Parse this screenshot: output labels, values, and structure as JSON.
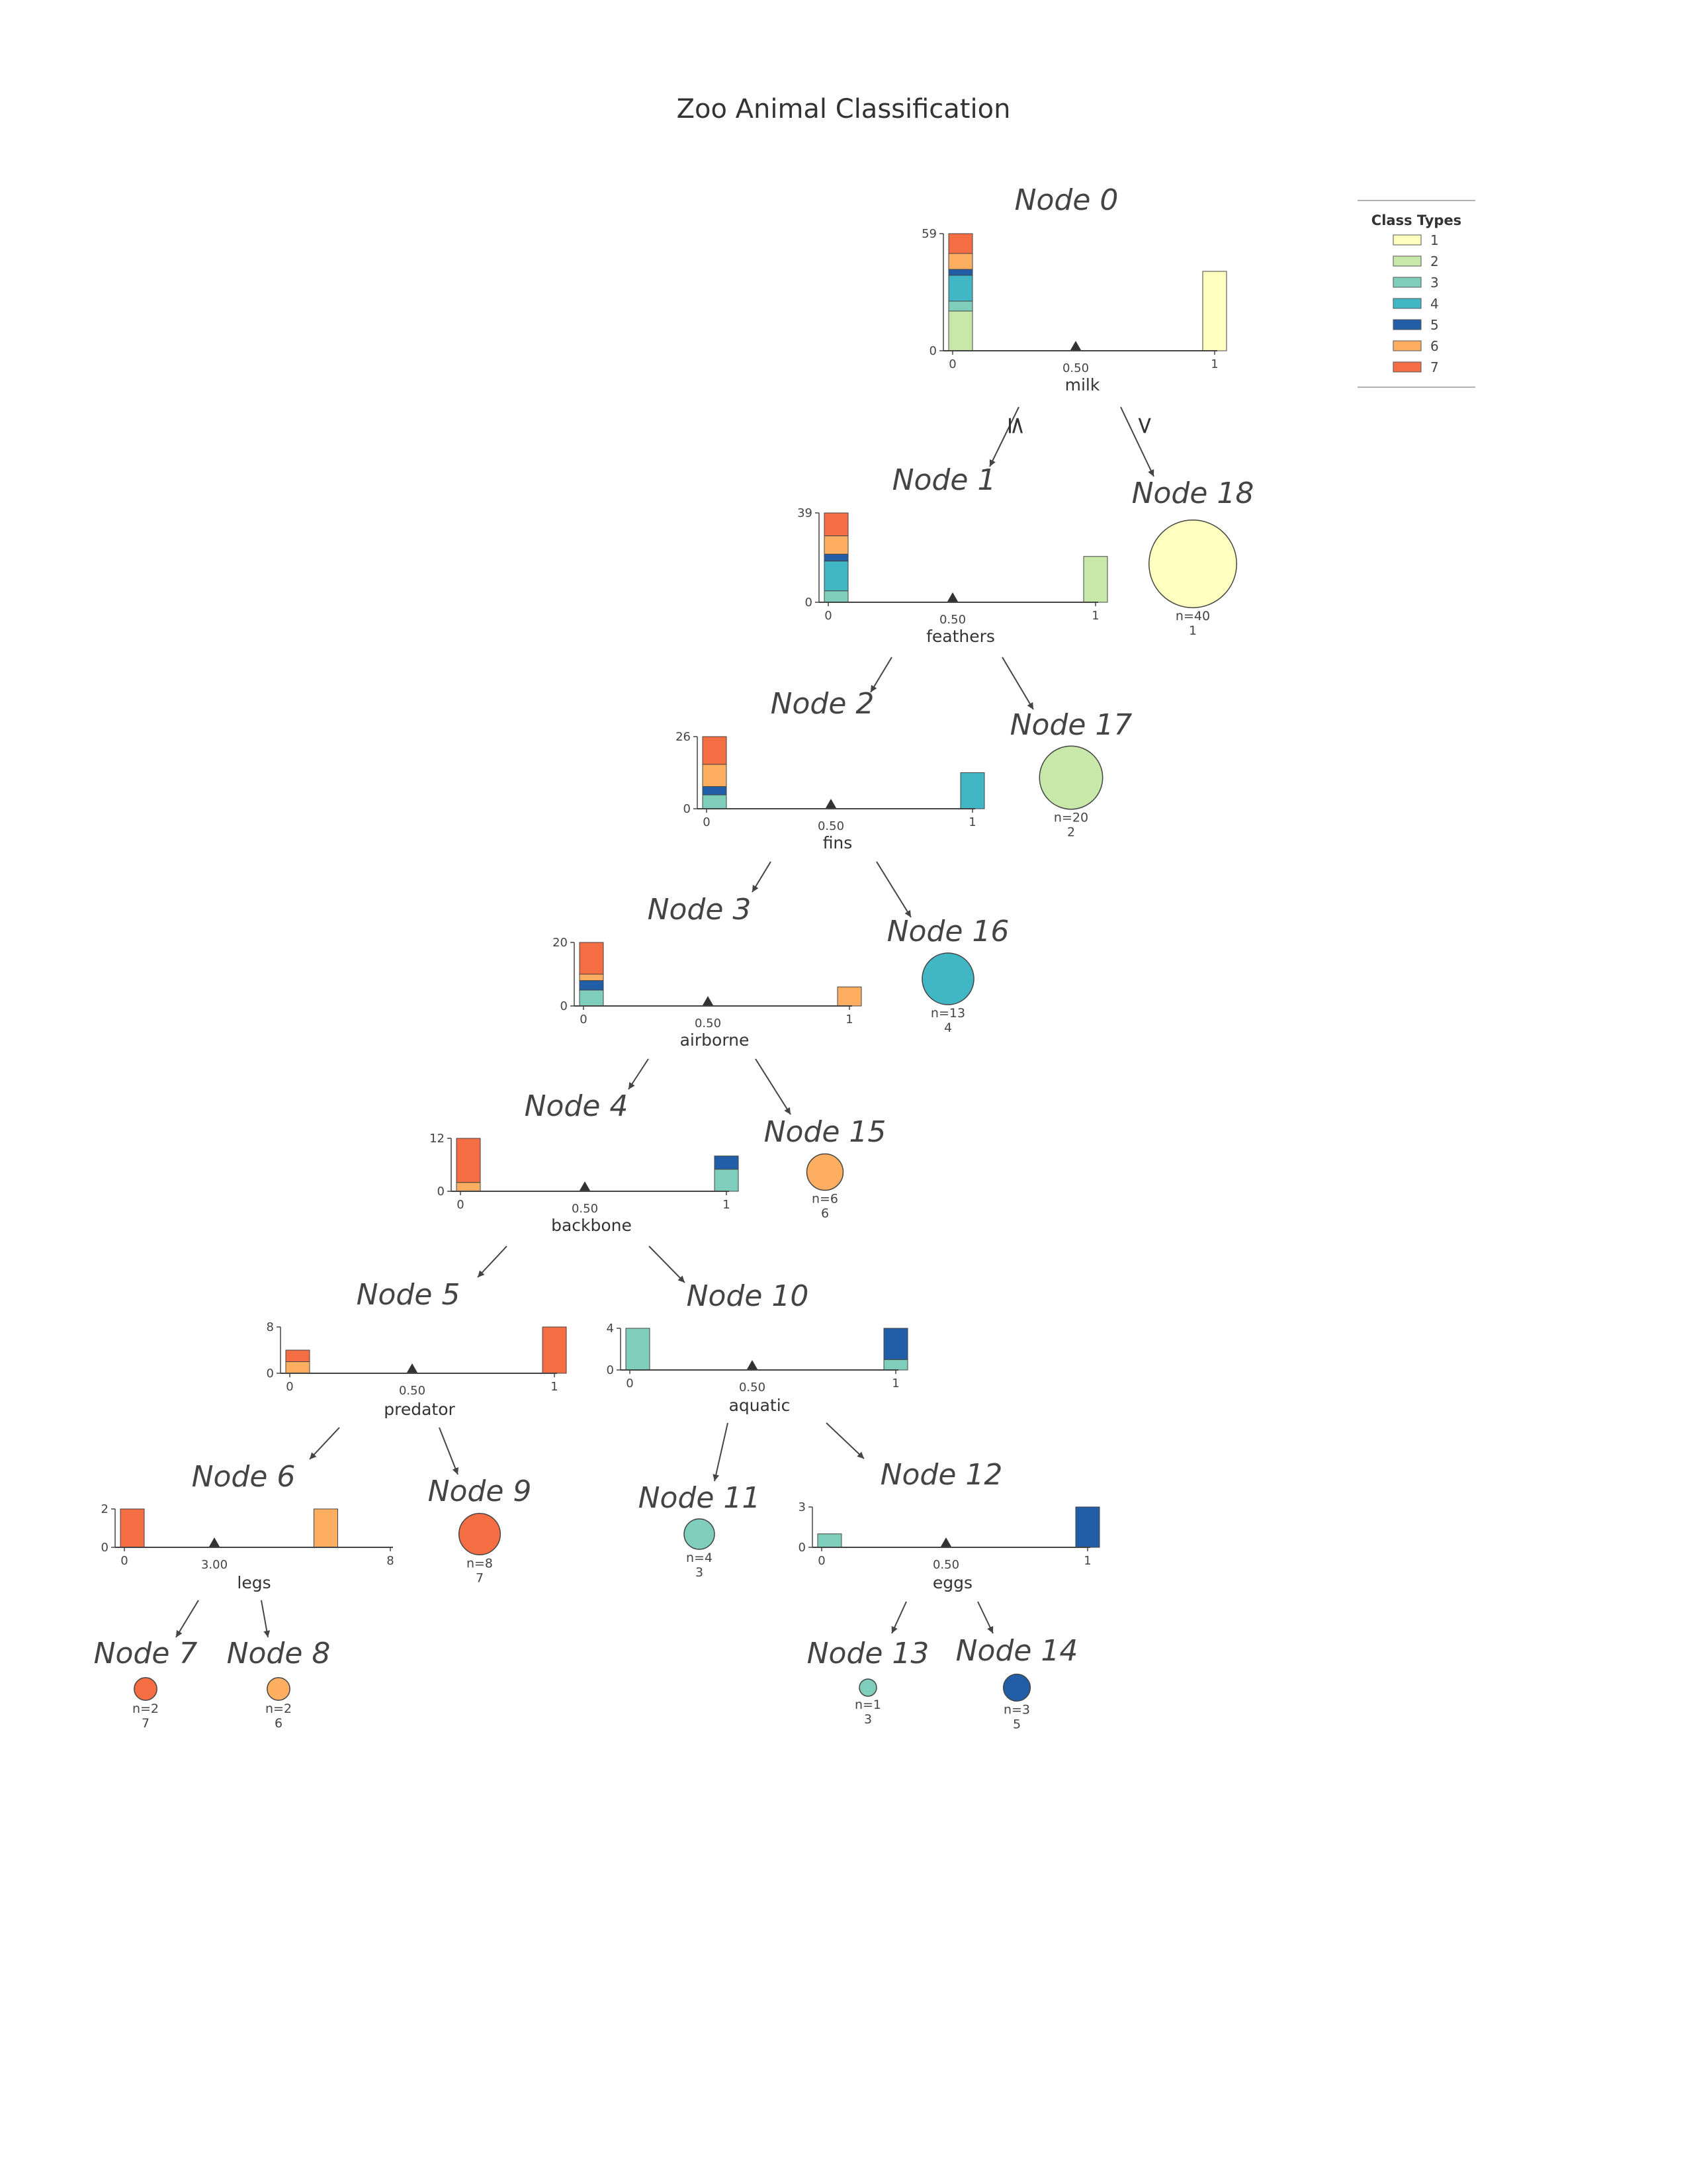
{
  "title": "Zoo Animal Classification",
  "legend": {
    "title": "Class Types",
    "classes": [
      {
        "label": "1",
        "color": "#ffffbf"
      },
      {
        "label": "2",
        "color": "#c7e8a8"
      },
      {
        "label": "3",
        "color": "#7fcdbb"
      },
      {
        "label": "4",
        "color": "#41b6c4"
      },
      {
        "label": "5",
        "color": "#225ea8"
      },
      {
        "label": "6",
        "color": "#fdae61"
      },
      {
        "label": "7",
        "color": "#f46d43"
      }
    ]
  },
  "edge_labels": {
    "left": "≤",
    "right": ">"
  },
  "split_nodes": [
    {
      "id": "node0",
      "label": "Node 0",
      "feature": "milk",
      "threshold": "0.50",
      "x_ticks": [
        "0",
        "1"
      ],
      "y_ticks": [
        "0",
        "59"
      ],
      "y_max": 59,
      "x_range": [
        0,
        1
      ],
      "split_value": 0.5,
      "bars": [
        {
          "x": 0,
          "counts": {
            "1": 0,
            "2": 20,
            "3": 5,
            "4": 13,
            "5": 3,
            "6": 8,
            "7": 10
          }
        },
        {
          "x": 1,
          "counts": {
            "1": 40
          }
        }
      ]
    },
    {
      "id": "node1",
      "label": "Node 1",
      "feature": "feathers",
      "threshold": "0.50",
      "x_ticks": [
        "0",
        "1"
      ],
      "y_ticks": [
        "0",
        "39"
      ],
      "y_max": 39,
      "x_range": [
        0,
        1
      ],
      "split_value": 0.5,
      "bars": [
        {
          "x": 0,
          "counts": {
            "3": 5,
            "4": 13,
            "5": 3,
            "6": 8,
            "7": 10
          }
        },
        {
          "x": 1,
          "counts": {
            "2": 20
          }
        }
      ]
    },
    {
      "id": "node2",
      "label": "Node 2",
      "feature": "fins",
      "threshold": "0.50",
      "x_ticks": [
        "0",
        "1"
      ],
      "y_ticks": [
        "0",
        "26"
      ],
      "y_max": 26,
      "x_range": [
        0,
        1
      ],
      "split_value": 0.5,
      "bars": [
        {
          "x": 0,
          "counts": {
            "3": 5,
            "5": 3,
            "6": 8,
            "7": 10
          }
        },
        {
          "x": 1,
          "counts": {
            "4": 13
          }
        }
      ]
    },
    {
      "id": "node3",
      "label": "Node 3",
      "feature": "airborne",
      "threshold": "0.50",
      "x_ticks": [
        "0",
        "1"
      ],
      "y_ticks": [
        "0",
        "20"
      ],
      "y_max": 20,
      "x_range": [
        0,
        1
      ],
      "split_value": 0.5,
      "bars": [
        {
          "x": 0,
          "counts": {
            "3": 5,
            "5": 3,
            "6": 2,
            "7": 10
          }
        },
        {
          "x": 1,
          "counts": {
            "6": 6
          }
        }
      ]
    },
    {
      "id": "node4",
      "label": "Node 4",
      "feature": "backbone",
      "threshold": "0.50",
      "x_ticks": [
        "0",
        "1"
      ],
      "y_ticks": [
        "0",
        "12"
      ],
      "y_max": 12,
      "x_range": [
        0,
        1
      ],
      "split_value": 0.5,
      "bars": [
        {
          "x": 0,
          "counts": {
            "6": 2,
            "7": 10
          }
        },
        {
          "x": 1,
          "counts": {
            "3": 5,
            "5": 3
          }
        }
      ]
    },
    {
      "id": "node5",
      "label": "Node 5",
      "feature": "predator",
      "threshold": "0.50",
      "x_ticks": [
        "0",
        "1"
      ],
      "y_ticks": [
        "0",
        "8"
      ],
      "y_max": 8,
      "x_range": [
        0,
        1
      ],
      "split_value": 0.5,
      "bars": [
        {
          "x": 0,
          "counts": {
            "6": 2,
            "7": 2
          }
        },
        {
          "x": 1,
          "counts": {
            "7": 8
          }
        }
      ]
    },
    {
      "id": "node10",
      "label": "Node 10",
      "feature": "aquatic",
      "threshold": "0.50",
      "x_ticks": [
        "0",
        "1"
      ],
      "y_ticks": [
        "0",
        "4"
      ],
      "y_max": 4,
      "x_range": [
        0,
        1
      ],
      "split_value": 0.5,
      "bars": [
        {
          "x": 0,
          "counts": {
            "3": 4
          }
        },
        {
          "x": 1,
          "counts": {
            "3": 1,
            "5": 3
          }
        }
      ]
    },
    {
      "id": "node6",
      "label": "Node 6",
      "feature": "legs",
      "threshold": "3.00",
      "x_ticks": [
        "0",
        "8"
      ],
      "y_ticks": [
        "0",
        "2"
      ],
      "y_max": 2,
      "x_range": [
        0,
        8
      ],
      "split_value": 3,
      "bars": [
        {
          "x": 0,
          "counts": {
            "7": 2
          }
        },
        {
          "x": 6,
          "counts": {
            "6": 2
          }
        }
      ]
    },
    {
      "id": "node12",
      "label": "Node 12",
      "feature": "eggs",
      "threshold": "0.50",
      "x_ticks": [
        "0",
        "1"
      ],
      "y_ticks": [
        "0",
        "3"
      ],
      "y_max": 3,
      "x_range": [
        0,
        1
      ],
      "split_value": 0.5,
      "bars": [
        {
          "x": 0,
          "counts": {
            "3": 1
          }
        },
        {
          "x": 1,
          "counts": {
            "5": 3
          }
        }
      ]
    }
  ],
  "leaf_nodes": [
    {
      "id": "node18",
      "label": "Node 18",
      "n_text": "n=40",
      "n": 40,
      "class": "1"
    },
    {
      "id": "node17",
      "label": "Node 17",
      "n_text": "n=20",
      "n": 20,
      "class": "2"
    },
    {
      "id": "node16",
      "label": "Node 16",
      "n_text": "n=13",
      "n": 13,
      "class": "4"
    },
    {
      "id": "node15",
      "label": "Node 15",
      "n_text": "n=6",
      "n": 6,
      "class": "6"
    },
    {
      "id": "node9",
      "label": "Node 9",
      "n_text": "n=8",
      "n": 8,
      "class": "7"
    },
    {
      "id": "node11",
      "label": "Node 11",
      "n_text": "n=4",
      "n": 4,
      "class": "3"
    },
    {
      "id": "node7",
      "label": "Node 7",
      "n_text": "n=2",
      "n": 2,
      "class": "7"
    },
    {
      "id": "node8",
      "label": "Node 8",
      "n_text": "n=2",
      "n": 2,
      "class": "6"
    },
    {
      "id": "node13",
      "label": "Node 13",
      "n_text": "n=1",
      "n": 1,
      "class": "3"
    },
    {
      "id": "node14",
      "label": "Node 14",
      "n_text": "n=3",
      "n": 3,
      "class": "5"
    }
  ],
  "edges": [
    {
      "from": "node0",
      "to": "node1",
      "side": "left",
      "labeled": true
    },
    {
      "from": "node0",
      "to": "node18",
      "side": "right",
      "labeled": true
    },
    {
      "from": "node1",
      "to": "node2",
      "side": "left"
    },
    {
      "from": "node1",
      "to": "node17",
      "side": "right"
    },
    {
      "from": "node2",
      "to": "node3",
      "side": "left"
    },
    {
      "from": "node2",
      "to": "node16",
      "side": "right"
    },
    {
      "from": "node3",
      "to": "node4",
      "side": "left"
    },
    {
      "from": "node3",
      "to": "node15",
      "side": "right"
    },
    {
      "from": "node4",
      "to": "node5",
      "side": "left"
    },
    {
      "from": "node4",
      "to": "node10",
      "side": "right"
    },
    {
      "from": "node5",
      "to": "node6",
      "side": "left"
    },
    {
      "from": "node5",
      "to": "node9",
      "side": "right"
    },
    {
      "from": "node10",
      "to": "node11",
      "side": "left"
    },
    {
      "from": "node10",
      "to": "node12",
      "side": "right"
    },
    {
      "from": "node6",
      "to": "node7",
      "side": "left"
    },
    {
      "from": "node6",
      "to": "node8",
      "side": "right"
    },
    {
      "from": "node12",
      "to": "node13",
      "side": "left"
    },
    {
      "from": "node12",
      "to": "node14",
      "side": "right"
    }
  ]
}
